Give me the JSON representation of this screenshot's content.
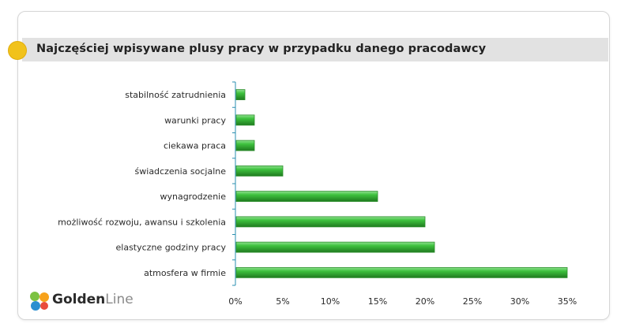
{
  "header": {
    "title": "Najczęściej wpisywane plusy pracy w przypadku danego pracodawcy"
  },
  "logo": {
    "name_part1": "Golden",
    "name_part2": "Line",
    "icon": "goldenline-logo-icon"
  },
  "colors": {
    "bar": "#3ec23e",
    "bar_dark": "#1f7a1f",
    "axis": "#2a8fb0",
    "title_dot": "#f1c21b"
  },
  "chart_data": {
    "type": "bar",
    "orientation": "horizontal",
    "title": "Najczęściej wpisywane plusy pracy w przypadku danego pracodawcy",
    "categories": [
      "stabilność zatrudnienia",
      "warunki pracy",
      "ciekawa praca",
      "świadczenia socjalne",
      "wynagrodzenie",
      "możliwość rozwoju, awansu i szkolenia",
      "elastyczne godziny pracy",
      "atmosfera w firmie"
    ],
    "values": [
      1,
      2,
      2,
      5,
      15,
      20,
      21,
      35
    ],
    "xlim": [
      0,
      35
    ],
    "xticks": [
      "0%",
      "5%",
      "10%",
      "15%",
      "20%",
      "25%",
      "30%",
      "35%"
    ],
    "grid": false,
    "legend": "none"
  }
}
